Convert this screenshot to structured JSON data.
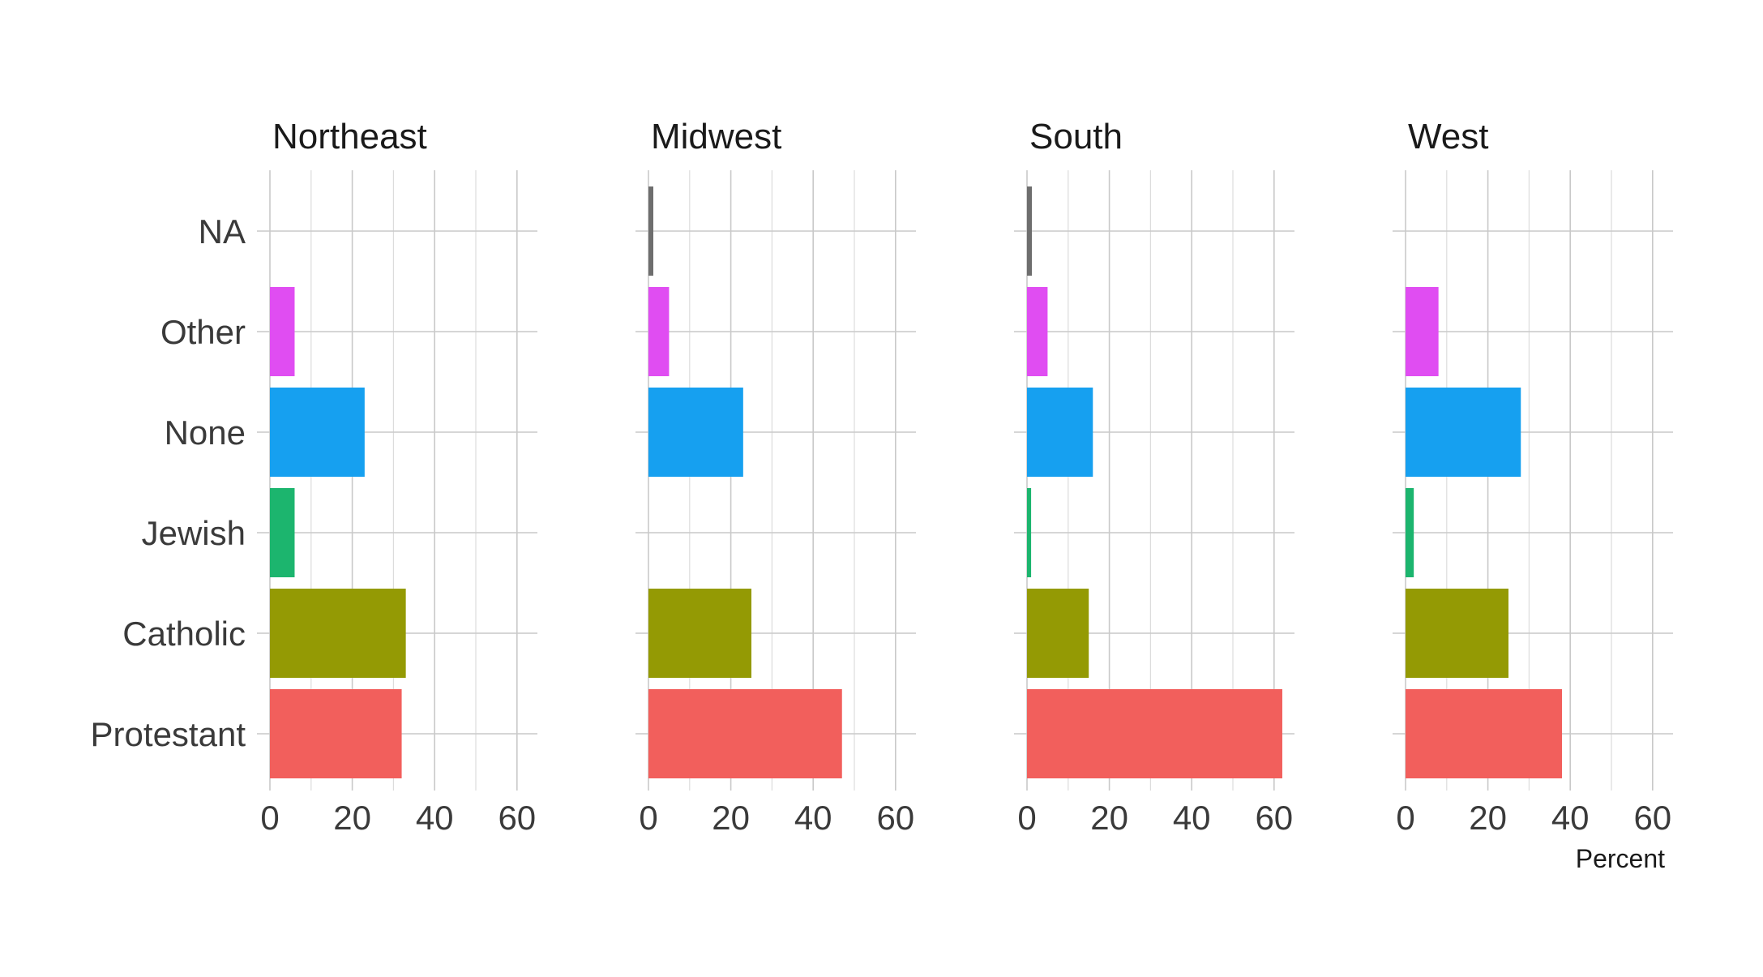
{
  "chart_data": {
    "type": "bar",
    "orientation": "horizontal",
    "facet": "region",
    "panels": [
      "Northeast",
      "Midwest",
      "South",
      "West"
    ],
    "categories": [
      "Protestant",
      "Catholic",
      "Jewish",
      "None",
      "Other",
      "NA"
    ],
    "xlabel": "Percent",
    "ylabel": "",
    "xlim": [
      0,
      65
    ],
    "xticks": [
      0,
      20,
      40,
      60
    ],
    "grid": true,
    "legend": "none",
    "colors": {
      "Protestant": "#F25F5C",
      "Catholic": "#949A04",
      "Jewish": "#1CB56E",
      "None": "#16A0F0",
      "Other": "#E04DF2",
      "NA": "#6E6E6E"
    },
    "values": {
      "Northeast": {
        "Protestant": 32,
        "Catholic": 33,
        "Jewish": 6,
        "None": 23,
        "Other": 6,
        "NA": 0
      },
      "Midwest": {
        "Protestant": 47,
        "Catholic": 25,
        "Jewish": 0,
        "None": 23,
        "Other": 5,
        "NA": 1
      },
      "South": {
        "Protestant": 62,
        "Catholic": 15,
        "Jewish": 1,
        "None": 16,
        "Other": 5,
        "NA": 1
      },
      "West": {
        "Protestant": 38,
        "Catholic": 25,
        "Jewish": 2,
        "None": 28,
        "Other": 8,
        "NA": 0
      }
    }
  }
}
